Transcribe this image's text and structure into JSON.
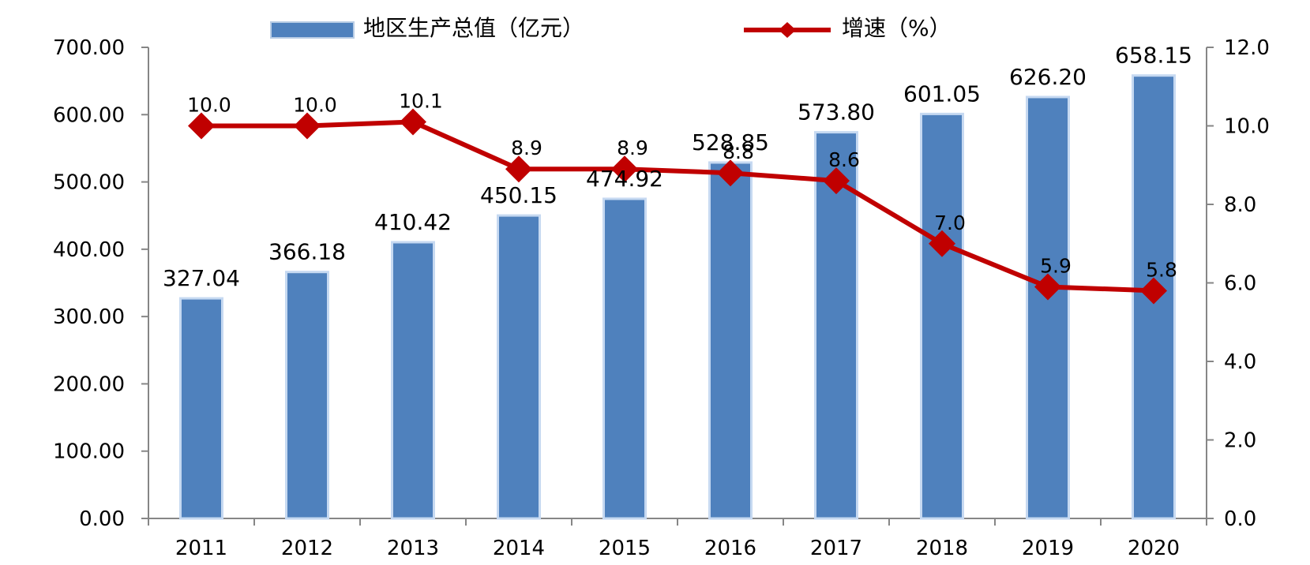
{
  "chart_data": {
    "type": "bar",
    "categories": [
      "2011",
      "2012",
      "2013",
      "2014",
      "2015",
      "2016",
      "2017",
      "2018",
      "2019",
      "2020"
    ],
    "series": [
      {
        "name": "地区生产总值（亿元）",
        "type": "bar",
        "axis": "left",
        "color": "#4F81BD",
        "values": [
          327.04,
          366.18,
          410.42,
          450.15,
          474.92,
          528.85,
          573.8,
          601.05,
          626.2,
          658.15
        ],
        "labels": [
          "327.04",
          "366.18",
          "410.42",
          "450.15",
          "474.92",
          "528.85",
          "573.80",
          "601.05",
          "626.20",
          "658.15"
        ]
      },
      {
        "name": "增速（%）",
        "type": "line",
        "axis": "right",
        "color": "#C00000",
        "marker": "diamond",
        "values": [
          10.0,
          10.0,
          10.1,
          8.9,
          8.9,
          8.8,
          8.6,
          7.0,
          5.9,
          5.8
        ],
        "labels": [
          "10.0",
          "10.0",
          "10.1",
          "8.9",
          "8.9",
          "8.8",
          "8.6",
          "7.0",
          "5.9",
          "5.8"
        ]
      }
    ],
    "y_left": {
      "min": 0,
      "max": 700,
      "step": 100,
      "ticks": [
        "0.00",
        "100.00",
        "200.00",
        "300.00",
        "400.00",
        "500.00",
        "600.00",
        "700.00"
      ]
    },
    "y_right": {
      "min": 0,
      "max": 12,
      "step": 2,
      "ticks": [
        "0.0",
        "2.0",
        "4.0",
        "6.0",
        "8.0",
        "10.0",
        "12.0"
      ]
    },
    "title": "",
    "xlabel": "",
    "ylabel": "",
    "grid": false,
    "legend_position": "top-center"
  }
}
